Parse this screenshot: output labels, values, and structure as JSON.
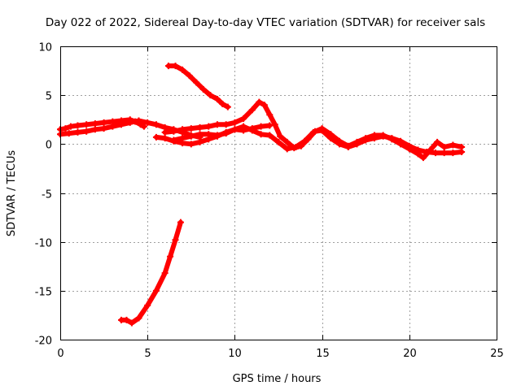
{
  "chart_data": {
    "type": "scatter",
    "title": "Day 022 of 2022, Sidereal Day-to-day VTEC variation (SDTVAR) for receiver sals",
    "xlabel": "GPS time / hours",
    "ylabel": "SDTVAR / TECUs",
    "xlim": [
      0,
      25
    ],
    "ylim": [
      -20,
      10
    ],
    "xticks": [
      0,
      5,
      10,
      15,
      20,
      25
    ],
    "yticks": [
      10,
      5,
      0,
      -5,
      -10,
      -15,
      -20
    ],
    "grid": true,
    "series_color": "#ff0000",
    "series": [
      {
        "name": "arc-main",
        "points": [
          [
            0.0,
            1.5
          ],
          [
            0.3,
            1.6
          ],
          [
            0.6,
            1.8
          ],
          [
            1.0,
            1.9
          ],
          [
            1.5,
            2.0
          ],
          [
            2.0,
            2.1
          ],
          [
            2.5,
            2.2
          ],
          [
            3.0,
            2.3
          ],
          [
            3.5,
            2.4
          ],
          [
            4.0,
            2.5
          ],
          [
            4.3,
            2.3
          ],
          [
            4.6,
            2.0
          ],
          [
            4.8,
            1.8
          ]
        ]
      },
      {
        "name": "arc-main-2",
        "points": [
          [
            0.0,
            1.0
          ],
          [
            0.5,
            1.1
          ],
          [
            1.0,
            1.2
          ],
          [
            1.5,
            1.3
          ],
          [
            2.0,
            1.5
          ],
          [
            2.5,
            1.6
          ],
          [
            3.0,
            1.8
          ],
          [
            3.5,
            2.0
          ],
          [
            4.0,
            2.2
          ],
          [
            4.5,
            2.4
          ],
          [
            5.0,
            2.2
          ],
          [
            5.5,
            2.0
          ],
          [
            6.0,
            1.7
          ],
          [
            6.5,
            1.5
          ],
          [
            7.0,
            1.2
          ],
          [
            7.5,
            0.9
          ],
          [
            8.0,
            0.7
          ]
        ]
      },
      {
        "name": "arc-upper",
        "points": [
          [
            6.2,
            8.0
          ],
          [
            6.6,
            8.0
          ],
          [
            7.0,
            7.6
          ],
          [
            7.4,
            7.0
          ],
          [
            7.8,
            6.3
          ],
          [
            8.2,
            5.6
          ],
          [
            8.6,
            5.0
          ],
          [
            9.0,
            4.6
          ],
          [
            9.3,
            4.1
          ],
          [
            9.6,
            3.8
          ]
        ]
      },
      {
        "name": "arc-mid",
        "points": [
          [
            5.5,
            0.7
          ],
          [
            6.0,
            0.6
          ],
          [
            6.5,
            0.3
          ],
          [
            7.0,
            0.1
          ],
          [
            7.5,
            0.0
          ],
          [
            8.0,
            0.2
          ],
          [
            8.5,
            0.5
          ],
          [
            9.0,
            0.8
          ],
          [
            9.5,
            1.2
          ],
          [
            10.0,
            1.5
          ],
          [
            10.5,
            1.4
          ],
          [
            11.0,
            1.6
          ],
          [
            11.5,
            1.8
          ],
          [
            12.0,
            1.9
          ]
        ]
      },
      {
        "name": "arc-mid-2",
        "points": [
          [
            6.0,
            1.2
          ],
          [
            6.5,
            1.3
          ],
          [
            7.0,
            1.5
          ],
          [
            7.5,
            1.6
          ],
          [
            8.0,
            1.7
          ],
          [
            8.5,
            1.8
          ],
          [
            9.0,
            2.0
          ],
          [
            9.5,
            2.0
          ],
          [
            10.0,
            2.2
          ],
          [
            10.5,
            2.6
          ],
          [
            11.0,
            3.5
          ],
          [
            11.4,
            4.3
          ],
          [
            11.7,
            4.0
          ],
          [
            12.0,
            3.0
          ],
          [
            12.3,
            2.0
          ],
          [
            12.6,
            0.8
          ],
          [
            13.0,
            0.2
          ],
          [
            13.4,
            -0.4
          ],
          [
            13.8,
            -0.2
          ],
          [
            14.2,
            0.5
          ],
          [
            14.6,
            1.3
          ],
          [
            15.0,
            1.4
          ],
          [
            15.5,
            0.6
          ],
          [
            16.0,
            0.0
          ],
          [
            16.5,
            -0.3
          ],
          [
            17.0,
            0.0
          ],
          [
            17.5,
            0.4
          ],
          [
            18.0,
            0.6
          ],
          [
            18.5,
            0.8
          ],
          [
            19.0,
            0.6
          ],
          [
            19.5,
            0.3
          ],
          [
            20.0,
            -0.2
          ],
          [
            20.5,
            -0.6
          ],
          [
            21.0,
            -0.8
          ],
          [
            21.5,
            -0.9
          ],
          [
            22.0,
            -0.9
          ],
          [
            22.5,
            -0.9
          ],
          [
            23.0,
            -0.8
          ]
        ]
      },
      {
        "name": "arc-mid-3",
        "points": [
          [
            6.5,
            0.4
          ],
          [
            7.0,
            0.6
          ],
          [
            7.5,
            0.8
          ],
          [
            8.0,
            1.0
          ],
          [
            8.5,
            1.0
          ],
          [
            9.0,
            0.9
          ],
          [
            9.5,
            1.1
          ],
          [
            10.0,
            1.5
          ],
          [
            10.5,
            1.8
          ],
          [
            11.0,
            1.4
          ],
          [
            11.5,
            1.0
          ],
          [
            12.0,
            0.9
          ],
          [
            12.5,
            0.2
          ],
          [
            13.0,
            -0.5
          ],
          [
            13.5,
            -0.3
          ],
          [
            14.0,
            0.3
          ],
          [
            14.5,
            1.2
          ],
          [
            15.0,
            1.6
          ],
          [
            15.5,
            1.0
          ],
          [
            16.0,
            0.3
          ],
          [
            16.5,
            -0.2
          ],
          [
            17.0,
            0.2
          ],
          [
            17.5,
            0.6
          ],
          [
            18.0,
            0.9
          ],
          [
            18.5,
            0.9
          ],
          [
            19.0,
            0.5
          ],
          [
            19.5,
            0.0
          ],
          [
            20.0,
            -0.5
          ],
          [
            20.5,
            -1.0
          ],
          [
            20.8,
            -1.4
          ],
          [
            21.2,
            -0.6
          ],
          [
            21.6,
            0.2
          ],
          [
            22.0,
            -0.3
          ],
          [
            22.5,
            -0.1
          ],
          [
            23.0,
            -0.3
          ]
        ]
      },
      {
        "name": "arc-lower",
        "points": [
          [
            3.5,
            -18.0
          ],
          [
            3.8,
            -18.0
          ],
          [
            4.1,
            -18.3
          ],
          [
            4.5,
            -17.8
          ],
          [
            5.0,
            -16.5
          ],
          [
            5.5,
            -15.0
          ],
          [
            6.0,
            -13.2
          ],
          [
            6.3,
            -11.5
          ],
          [
            6.6,
            -9.8
          ],
          [
            6.9,
            -8.0
          ]
        ]
      }
    ]
  }
}
